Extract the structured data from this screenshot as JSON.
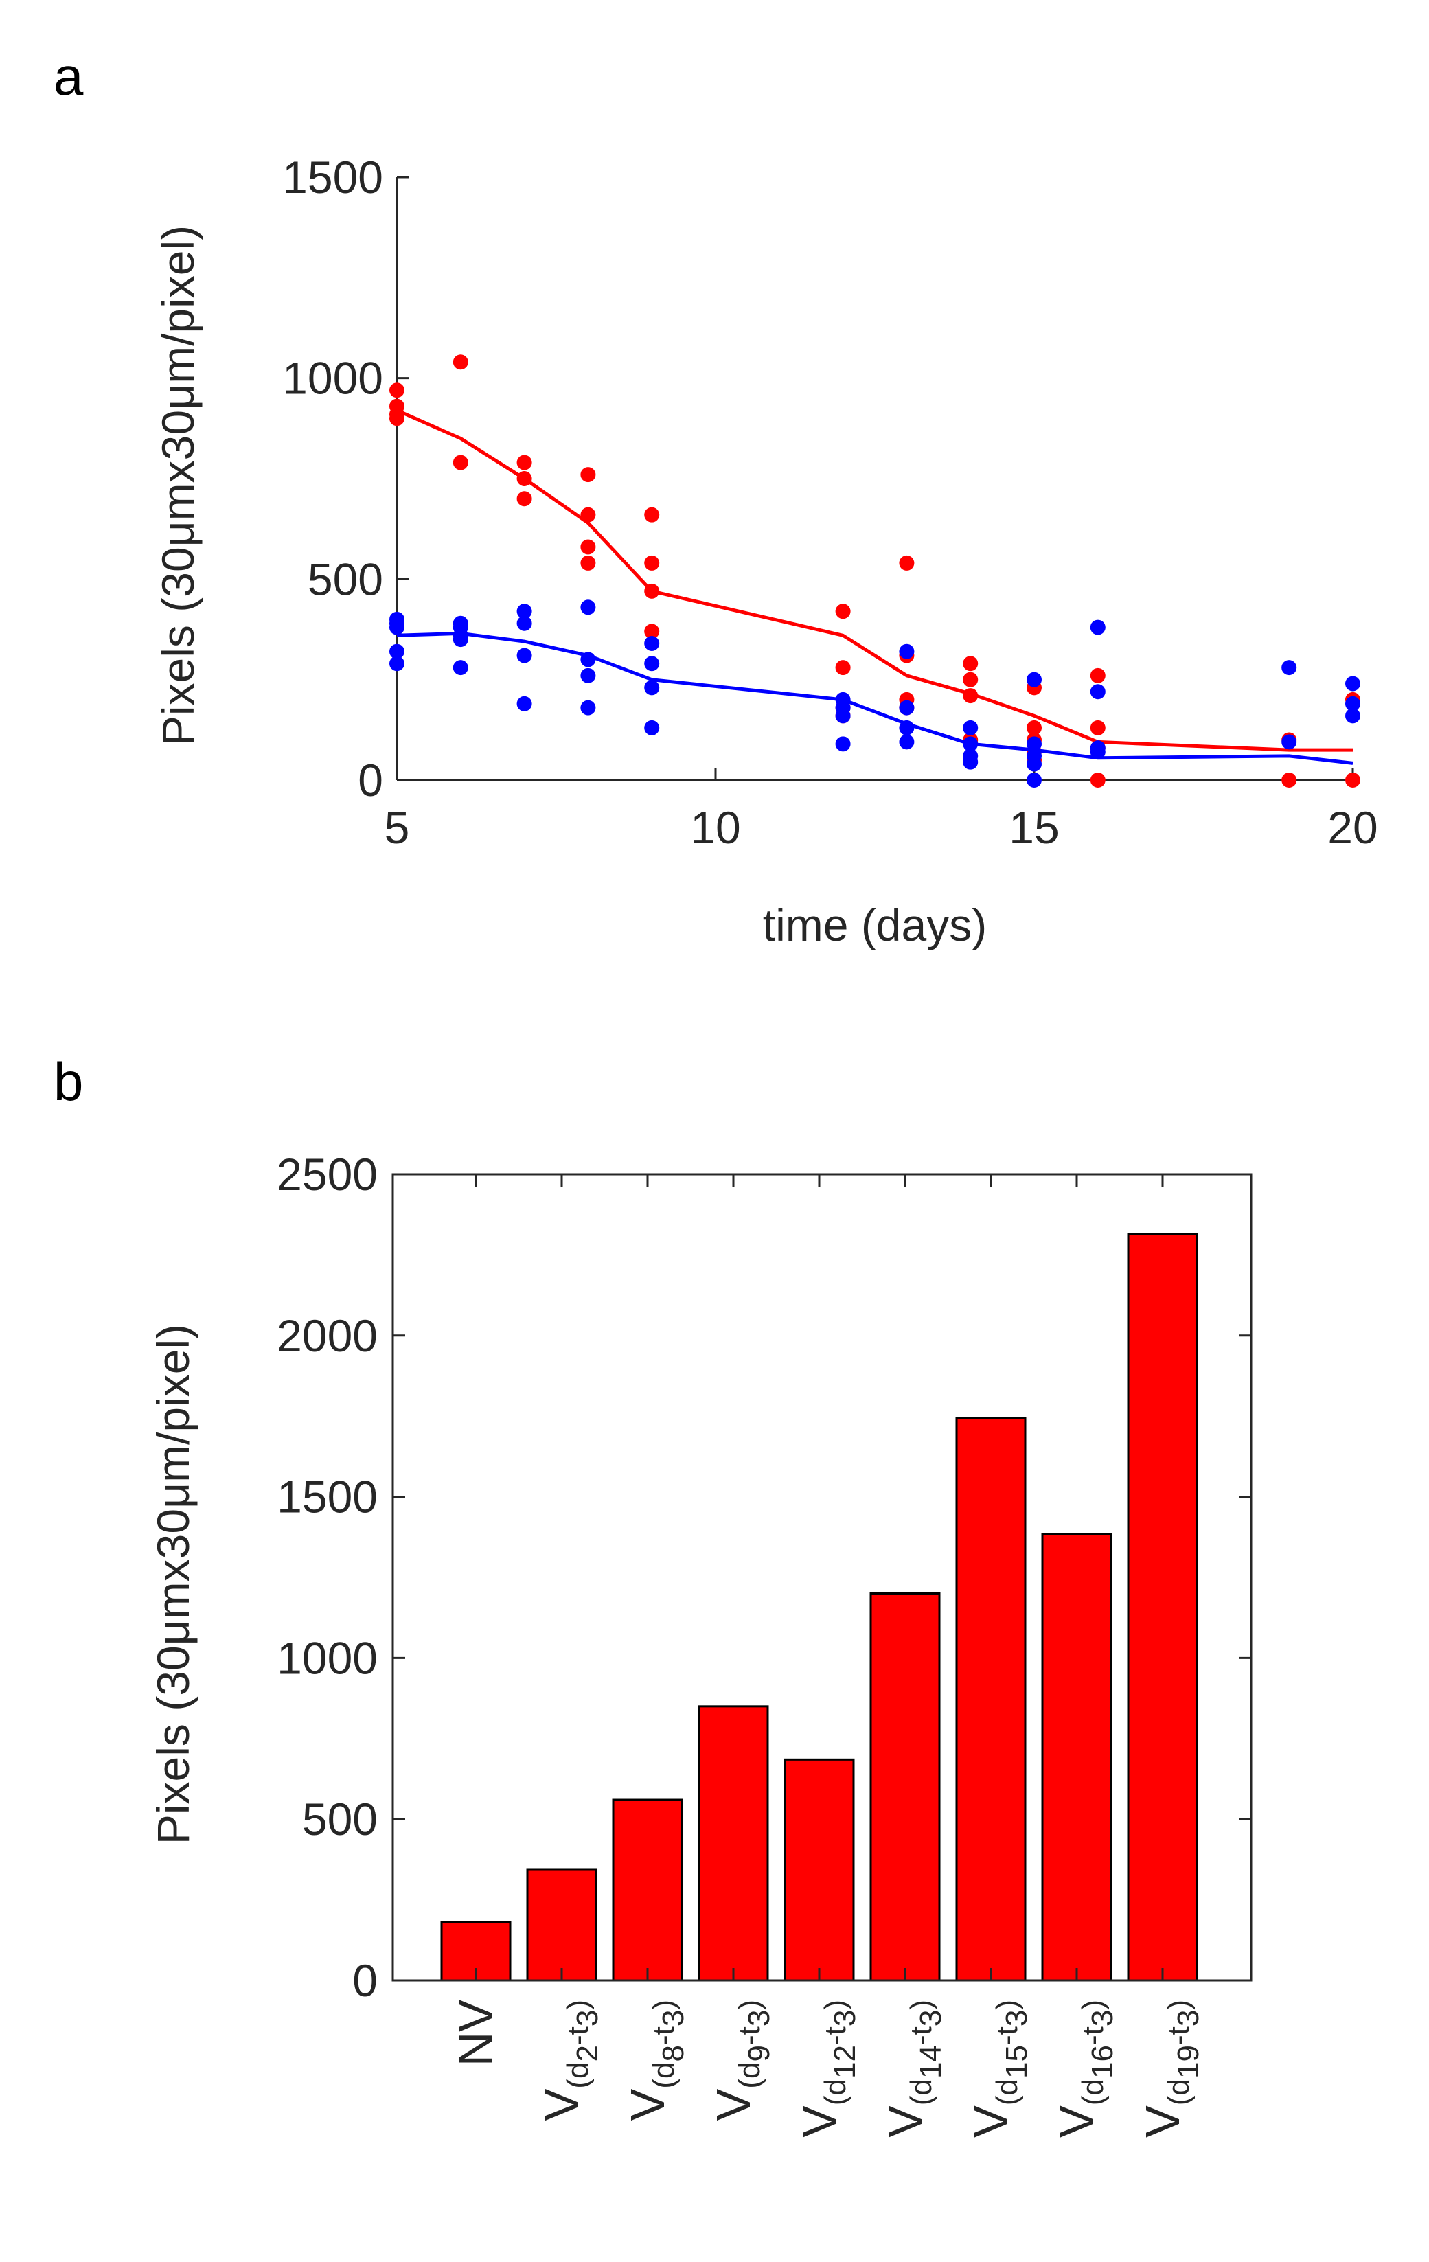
{
  "figure": {
    "panel_a_letter": "a",
    "panel_b_letter": "b"
  },
  "colors": {
    "red": "#ff0000",
    "blue": "#0000ff",
    "axis": "#262626",
    "bar_edge": "#000000"
  },
  "chart_data": [
    {
      "type": "scatter",
      "panel": "a",
      "xlabel": "time (days)",
      "ylabel": "Pixels (30μmx30μm/pixel)",
      "xlim": [
        5,
        20
      ],
      "ylim": [
        0,
        1500
      ],
      "xticks": [
        "5",
        "10",
        "15",
        "20"
      ],
      "yticks": [
        "0",
        "500",
        "1000",
        "1500"
      ],
      "grid": false,
      "box": false,
      "series": [
        {
          "color": "red",
          "points": [
            [
              5,
              970
            ],
            [
              5,
              930
            ],
            [
              5,
              910
            ],
            [
              5,
              900
            ],
            [
              6,
              1040
            ],
            [
              6,
              790
            ],
            [
              7,
              790
            ],
            [
              7,
              750
            ],
            [
              7,
              700
            ],
            [
              8,
              760
            ],
            [
              8,
              660
            ],
            [
              8,
              580
            ],
            [
              8,
              540
            ],
            [
              9,
              660
            ],
            [
              9,
              540
            ],
            [
              9,
              470
            ],
            [
              9,
              370
            ],
            [
              12,
              420
            ],
            [
              12,
              280
            ],
            [
              12,
              180
            ],
            [
              12,
              160
            ],
            [
              13,
              540
            ],
            [
              13,
              310
            ],
            [
              13,
              200
            ],
            [
              13,
              180
            ],
            [
              14,
              290
            ],
            [
              14,
              250
            ],
            [
              14,
              210
            ],
            [
              14,
              100
            ],
            [
              15,
              230
            ],
            [
              15,
              130
            ],
            [
              15,
              100
            ],
            [
              15,
              70
            ],
            [
              15,
              50
            ],
            [
              16,
              260
            ],
            [
              16,
              130
            ],
            [
              16,
              80
            ],
            [
              16,
              0
            ],
            [
              19,
              100
            ],
            [
              19,
              0
            ],
            [
              20,
              200
            ],
            [
              20,
              0
            ]
          ],
          "line": [
            [
              5,
              920
            ],
            [
              6,
              850
            ],
            [
              7,
              750
            ],
            [
              8,
              640
            ],
            [
              9,
              470
            ],
            [
              12,
              360
            ],
            [
              13,
              260
            ],
            [
              14,
              215
            ],
            [
              15,
              160
            ],
            [
              16,
              95
            ],
            [
              19,
              75
            ],
            [
              20,
              75
            ]
          ]
        },
        {
          "color": "blue",
          "points": [
            [
              5,
              400
            ],
            [
              5,
              390
            ],
            [
              5,
              380
            ],
            [
              5,
              320
            ],
            [
              5,
              290
            ],
            [
              6,
              390
            ],
            [
              6,
              380
            ],
            [
              6,
              360
            ],
            [
              6,
              350
            ],
            [
              6,
              280
            ],
            [
              7,
              420
            ],
            [
              7,
              390
            ],
            [
              7,
              310
            ],
            [
              7,
              190
            ],
            [
              8,
              430
            ],
            [
              8,
              300
            ],
            [
              8,
              260
            ],
            [
              8,
              180
            ],
            [
              9,
              340
            ],
            [
              9,
              290
            ],
            [
              9,
              230
            ],
            [
              9,
              130
            ],
            [
              12,
              200
            ],
            [
              12,
              180
            ],
            [
              12,
              160
            ],
            [
              12,
              90
            ],
            [
              13,
              320
            ],
            [
              13,
              180
            ],
            [
              13,
              130
            ],
            [
              13,
              95
            ],
            [
              14,
              130
            ],
            [
              14,
              90
            ],
            [
              14,
              60
            ],
            [
              14,
              45
            ],
            [
              15,
              250
            ],
            [
              15,
              90
            ],
            [
              15,
              60
            ],
            [
              15,
              40
            ],
            [
              15,
              0
            ],
            [
              16,
              380
            ],
            [
              16,
              220
            ],
            [
              16,
              80
            ],
            [
              16,
              70
            ],
            [
              19,
              280
            ],
            [
              19,
              95
            ],
            [
              20,
              240
            ],
            [
              20,
              190
            ],
            [
              20,
              160
            ]
          ],
          "line": [
            [
              5,
              360
            ],
            [
              6,
              365
            ],
            [
              7,
              345
            ],
            [
              8,
              310
            ],
            [
              9,
              250
            ],
            [
              12,
              200
            ],
            [
              13,
              140
            ],
            [
              14,
              90
            ],
            [
              15,
              75
            ],
            [
              16,
              55
            ],
            [
              19,
              60
            ],
            [
              20,
              42
            ]
          ]
        }
      ]
    },
    {
      "type": "bar",
      "panel": "b",
      "ylabel": "Pixels (30μmx30μm/pixel)",
      "ylim": [
        0,
        2500
      ],
      "yticks": [
        "0",
        "500",
        "1000",
        "1500",
        "2000",
        "2500"
      ],
      "bar_color": "red",
      "categories": [
        {
          "main": "NV",
          "sub1": "",
          "mid": "",
          "sub2": "",
          "close": ""
        },
        {
          "main": "V",
          "sub1": "(d",
          "mid": "-t",
          "sub2": "2",
          "sub3": "3",
          "close": ")"
        },
        {
          "main": "V",
          "sub1": "(d",
          "mid": "-t",
          "sub2": "8",
          "sub3": "3",
          "close": ")"
        },
        {
          "main": "V",
          "sub1": "(d",
          "mid": "-t",
          "sub2": "9",
          "sub3": "3",
          "close": ")"
        },
        {
          "main": "V",
          "sub1": "(d",
          "mid": "-t",
          "sub2": "12",
          "sub3": "3",
          "close": ")"
        },
        {
          "main": "V",
          "sub1": "(d",
          "mid": "-t",
          "sub2": "14",
          "sub3": "3",
          "close": ")"
        },
        {
          "main": "V",
          "sub1": "(d",
          "mid": "-t",
          "sub2": "15",
          "sub3": "3",
          "close": ")"
        },
        {
          "main": "V",
          "sub1": "(d",
          "mid": "-t",
          "sub2": "16",
          "sub3": "3",
          "close": ")"
        },
        {
          "main": "V",
          "sub1": "(d",
          "mid": "-t",
          "sub2": "19",
          "sub3": "3",
          "close": ")"
        }
      ],
      "values": [
        180,
        345,
        560,
        850,
        685,
        1200,
        1745,
        1385,
        2315
      ],
      "grid": false,
      "box": true
    }
  ]
}
